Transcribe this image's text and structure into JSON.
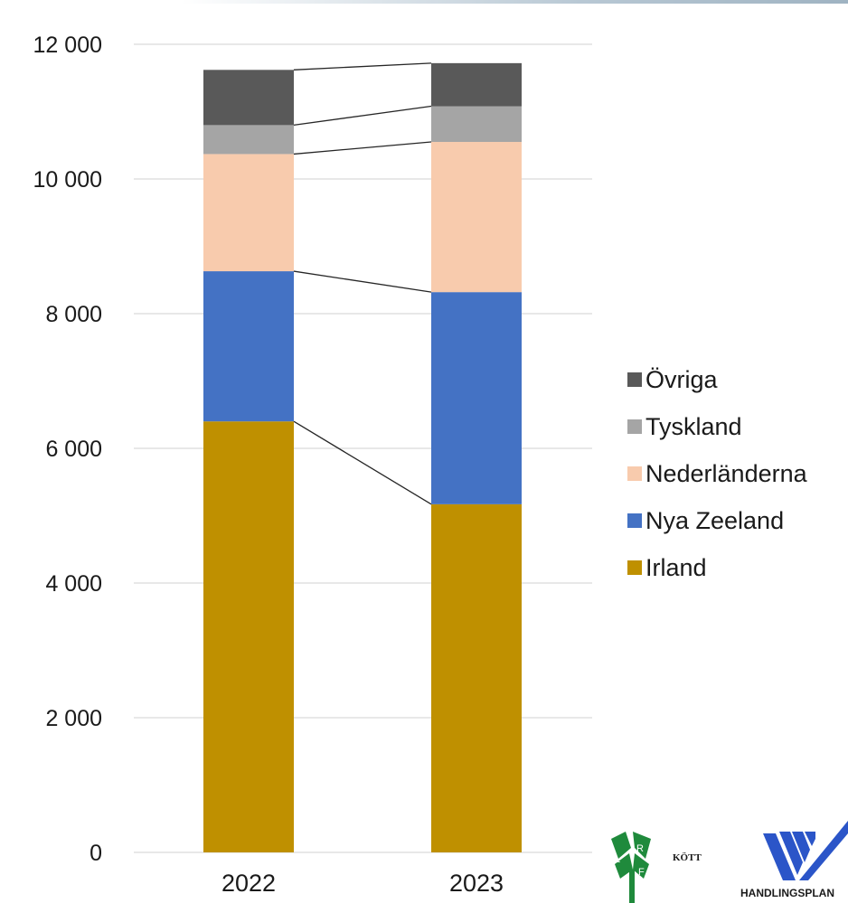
{
  "chart_data": {
    "type": "bar",
    "stacked": true,
    "categories": [
      "2022",
      "2023"
    ],
    "series": [
      {
        "name": "Irland",
        "values": [
          6400,
          5170
        ],
        "color": "#bf9000"
      },
      {
        "name": "Nya Zeeland",
        "values": [
          2230,
          3150
        ],
        "color": "#4472c4"
      },
      {
        "name": "Nederländerna",
        "values": [
          1740,
          2230
        ],
        "color": "#f8cbad"
      },
      {
        "name": "Tyskland",
        "values": [
          430,
          530
        ],
        "color": "#a5a5a5"
      },
      {
        "name": "Övriga",
        "values": [
          820,
          640
        ],
        "color": "#595959"
      }
    ],
    "ylim": [
      0,
      12000
    ],
    "yticks": [
      0,
      2000,
      4000,
      6000,
      8000,
      10000,
      12000
    ],
    "ytick_labels": [
      "0",
      "2 000",
      "4 000",
      "6 000",
      "8 000",
      "10 000",
      "12 000"
    ],
    "grid": true,
    "legend_position": "right",
    "legend_order": [
      "Övriga",
      "Tyskland",
      "Nederländerna",
      "Nya Zeeland",
      "Irland"
    ],
    "series_lines": true
  },
  "logos": {
    "lrf_letters": [
      "L",
      "R",
      "F"
    ],
    "kott": "KÖTT",
    "handlingsplan": "HANDLINGSPLAN"
  }
}
